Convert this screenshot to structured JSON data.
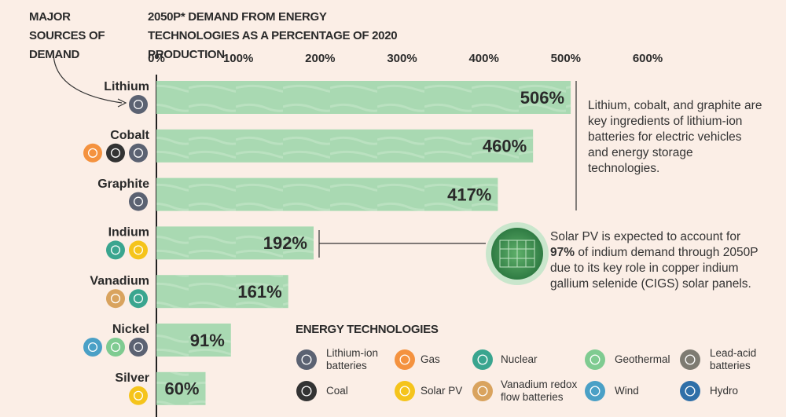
{
  "chart_data": {
    "type": "bar",
    "orientation": "horizontal",
    "title": "2050P* DEMAND FROM ENERGY TECHNOLOGIES AS A PERCENTAGE OF 2020 PRODUCTION",
    "category_axis_title": "MAJOR SOURCES OF DEMAND",
    "categories": [
      "Lithium",
      "Cobalt",
      "Graphite",
      "Indium",
      "Vanadium",
      "Nickel",
      "Silver"
    ],
    "values": [
      506,
      460,
      417,
      192,
      161,
      91,
      60
    ],
    "value_labels": [
      "506%",
      "460%",
      "417%",
      "192%",
      "161%",
      "91%",
      "60%"
    ],
    "color": "#a9d9b2",
    "xlim": [
      0,
      600
    ],
    "xticks": [
      {
        "value": 0,
        "label": "0%"
      },
      {
        "value": 100,
        "label": "100%"
      },
      {
        "value": 200,
        "label": "200%"
      },
      {
        "value": 300,
        "label": "300%"
      },
      {
        "value": 400,
        "label": "400%"
      },
      {
        "value": 500,
        "label": "500%"
      },
      {
        "value": 600,
        "label": "600%"
      }
    ],
    "annotations": [
      {
        "text": "Lithium, cobalt, and graphite are key ingredients of lithium-ion batteries for electric vehicles and energy storage technologies."
      },
      {
        "text_before": "Solar PV is expected to account for ",
        "highlight": "97%",
        "text_after": " of indium demand through 2050P due to its key role in copper indium gallium selenide (CIGS) solar panels."
      }
    ],
    "legend_title": "ENERGY TECHNOLOGIES",
    "legend": [
      {
        "name": "Lithium-ion batteries",
        "color": "#5b6272"
      },
      {
        "name": "Gas",
        "color": "#f4923f"
      },
      {
        "name": "Nuclear",
        "color": "#3aa58f"
      },
      {
        "name": "Geothermal",
        "color": "#7fcb91"
      },
      {
        "name": "Lead-acid batteries",
        "color": "#7e7b72"
      },
      {
        "name": "Coal",
        "color": "#333333"
      },
      {
        "name": "Solar PV",
        "color": "#f5c41b"
      },
      {
        "name": "Vanadium redox flow batteries",
        "color": "#d9a35e"
      },
      {
        "name": "Wind",
        "color": "#4aa0c6"
      },
      {
        "name": "Hydro",
        "color": "#2f6fa8"
      }
    ]
  }
}
